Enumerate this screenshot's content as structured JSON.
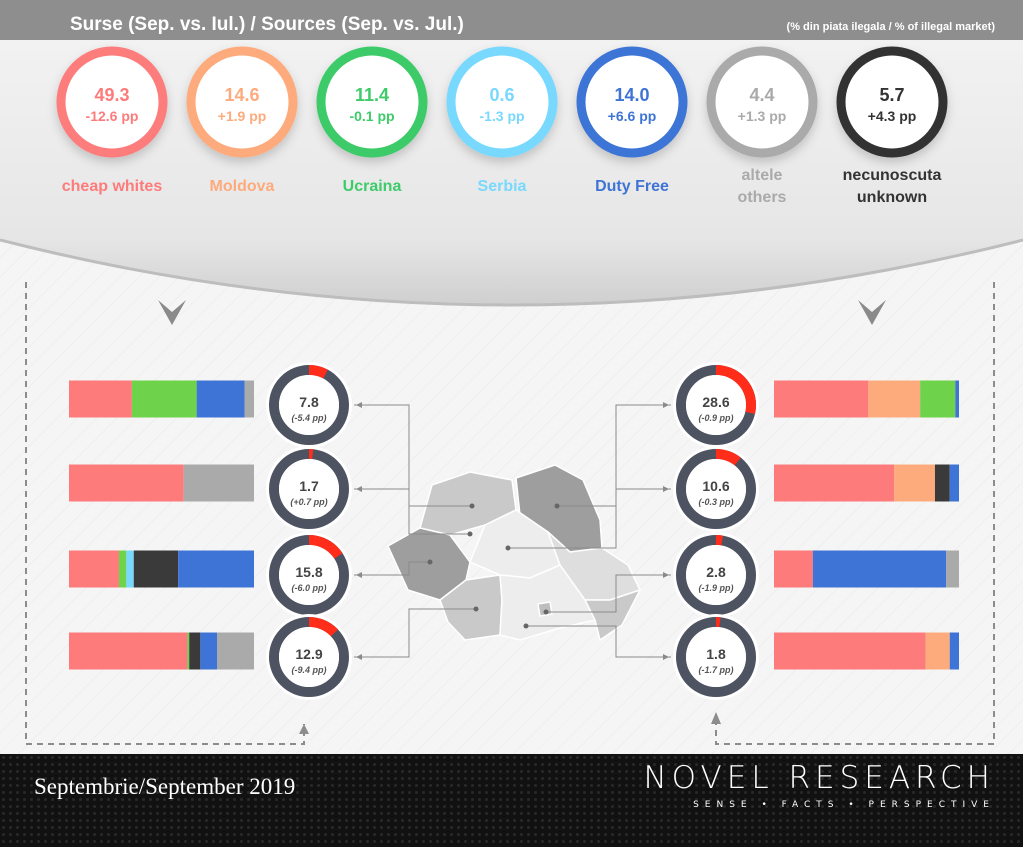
{
  "header": {
    "title": "Surse (Sep. vs. Iul.) / Sources (Sep. vs. Jul.)",
    "subtitle": "(% din piata ilegala / % of illegal market)"
  },
  "colors": {
    "cheap_whites": "#fd7b7b",
    "moldova": "#fdab7c",
    "ucraina": "#3ecb6a",
    "serbia": "#78d8fd",
    "duty_free": "#3e74d6",
    "others": "#aaaaaa",
    "unknown": "#3a3a3a",
    "bar_green": "#6ed24a",
    "ring_track": "#4e5361",
    "ring_accent": "#ff2d1a"
  },
  "sources": [
    {
      "value": "49.3",
      "change": "-12.6 pp",
      "label1": "cheap whites",
      "label2": "",
      "color": "#fd7b7b"
    },
    {
      "value": "14.6",
      "change": "+1.9 pp",
      "label1": "Moldova",
      "label2": "",
      "color": "#fdab7c"
    },
    {
      "value": "11.4",
      "change": "-0.1 pp",
      "label1": "Ucraina",
      "label2": "",
      "color": "#3ecb6a"
    },
    {
      "value": "0.6",
      "change": "-1.3 pp",
      "label1": "Serbia",
      "label2": "",
      "color": "#78d8fd"
    },
    {
      "value": "14.0",
      "change": "+6.6 pp",
      "label1": "Duty Free",
      "label2": "",
      "color": "#3e74d6"
    },
    {
      "value": "4.4",
      "change": "+1.3 pp",
      "label1": "altele",
      "label2": "others",
      "color": "#aaaaaa"
    },
    {
      "value": "5.7",
      "change": "+4.3 pp",
      "label1": "necunoscuta",
      "label2": "unknown",
      "color": "#333333"
    }
  ],
  "chart_data": {
    "type": "bar",
    "title": "Surse (Sep. vs. Iul.) / Sources (Sep. vs. Jul.)",
    "unit": "(% din piata ilegala / % of illegal market)",
    "series_names": [
      "cheap whites",
      "Moldova",
      "Ucraina",
      "Serbia",
      "Duty Free",
      "altele / others",
      "necunoscuta / unknown"
    ],
    "regions": [
      {
        "side": "left",
        "value": 7.8,
        "label": "7.8",
        "change": "(-5.4 pp)",
        "composition": [
          {
            "s": "cheap whites",
            "v": 34,
            "c": "#fd7b7b"
          },
          {
            "s": "Ucraina",
            "v": 35,
            "c": "#6ed24a"
          },
          {
            "s": "Duty Free",
            "v": 26,
            "c": "#3e74d6"
          },
          {
            "s": "altele / others",
            "v": 5,
            "c": "#aaaaaa"
          }
        ]
      },
      {
        "side": "left",
        "value": 1.7,
        "label": "1.7",
        "change": "(+0.7 pp)",
        "composition": [
          {
            "s": "cheap whites",
            "v": 62,
            "c": "#fd7b7b"
          },
          {
            "s": "altele / others",
            "v": 38,
            "c": "#aaaaaa"
          }
        ]
      },
      {
        "side": "left",
        "value": 15.8,
        "label": "15.8",
        "change": "(-6.0 pp)",
        "composition": [
          {
            "s": "cheap whites",
            "v": 27,
            "c": "#fd7b7b"
          },
          {
            "s": "Ucraina",
            "v": 4,
            "c": "#6ed24a"
          },
          {
            "s": "Serbia",
            "v": 4,
            "c": "#78d8fd"
          },
          {
            "s": "necunoscuta / unknown",
            "v": 24,
            "c": "#3a3a3a"
          },
          {
            "s": "Duty Free",
            "v": 41,
            "c": "#3e74d6"
          }
        ]
      },
      {
        "side": "left",
        "value": 12.9,
        "label": "12.9",
        "change": "(-9.4 pp)",
        "composition": [
          {
            "s": "cheap whites",
            "v": 64,
            "c": "#fd7b7b"
          },
          {
            "s": "Ucraina",
            "v": 1,
            "c": "#6ed24a"
          },
          {
            "s": "necunoscuta / unknown",
            "v": 6,
            "c": "#3a3a3a"
          },
          {
            "s": "Duty Free",
            "v": 9,
            "c": "#3e74d6"
          },
          {
            "s": "altele / others",
            "v": 20,
            "c": "#aaaaaa"
          }
        ]
      },
      {
        "side": "right",
        "value": 28.6,
        "label": "28.6",
        "change": "(-0.9 pp)",
        "composition": [
          {
            "s": "cheap whites",
            "v": 51,
            "c": "#fd7b7b"
          },
          {
            "s": "Moldova",
            "v": 28,
            "c": "#fdab7c"
          },
          {
            "s": "Ucraina",
            "v": 19,
            "c": "#6ed24a"
          },
          {
            "s": "Duty Free",
            "v": 2,
            "c": "#3e74d6"
          }
        ]
      },
      {
        "side": "right",
        "value": 10.6,
        "label": "10.6",
        "change": "(-0.3 pp)",
        "composition": [
          {
            "s": "cheap whites",
            "v": 65,
            "c": "#fd7b7b"
          },
          {
            "s": "Moldova",
            "v": 22,
            "c": "#fdab7c"
          },
          {
            "s": "necunoscuta / unknown",
            "v": 8,
            "c": "#3a3a3a"
          },
          {
            "s": "Duty Free",
            "v": 5,
            "c": "#3e74d6"
          }
        ]
      },
      {
        "side": "right",
        "value": 2.8,
        "label": "2.8",
        "change": "(-1.9 pp)",
        "composition": [
          {
            "s": "cheap whites",
            "v": 21,
            "c": "#fd7b7b"
          },
          {
            "s": "Duty Free",
            "v": 72,
            "c": "#3e74d6"
          },
          {
            "s": "altele / others",
            "v": 7,
            "c": "#aaaaaa"
          }
        ]
      },
      {
        "side": "right",
        "value": 1.8,
        "label": "1.8",
        "change": "(-1.7 pp)",
        "composition": [
          {
            "s": "cheap whites",
            "v": 82,
            "c": "#fd7b7b"
          },
          {
            "s": "Moldova",
            "v": 13,
            "c": "#fdab7c"
          },
          {
            "s": "Duty Free",
            "v": 5,
            "c": "#3e74d6"
          }
        ]
      }
    ],
    "ring_max": 100
  },
  "footer": {
    "date": "Septembrie/September 2019",
    "brand": "NOVEL RESEARCH",
    "tagline": "SENSE • FACTS • PERSPECTIVE"
  }
}
